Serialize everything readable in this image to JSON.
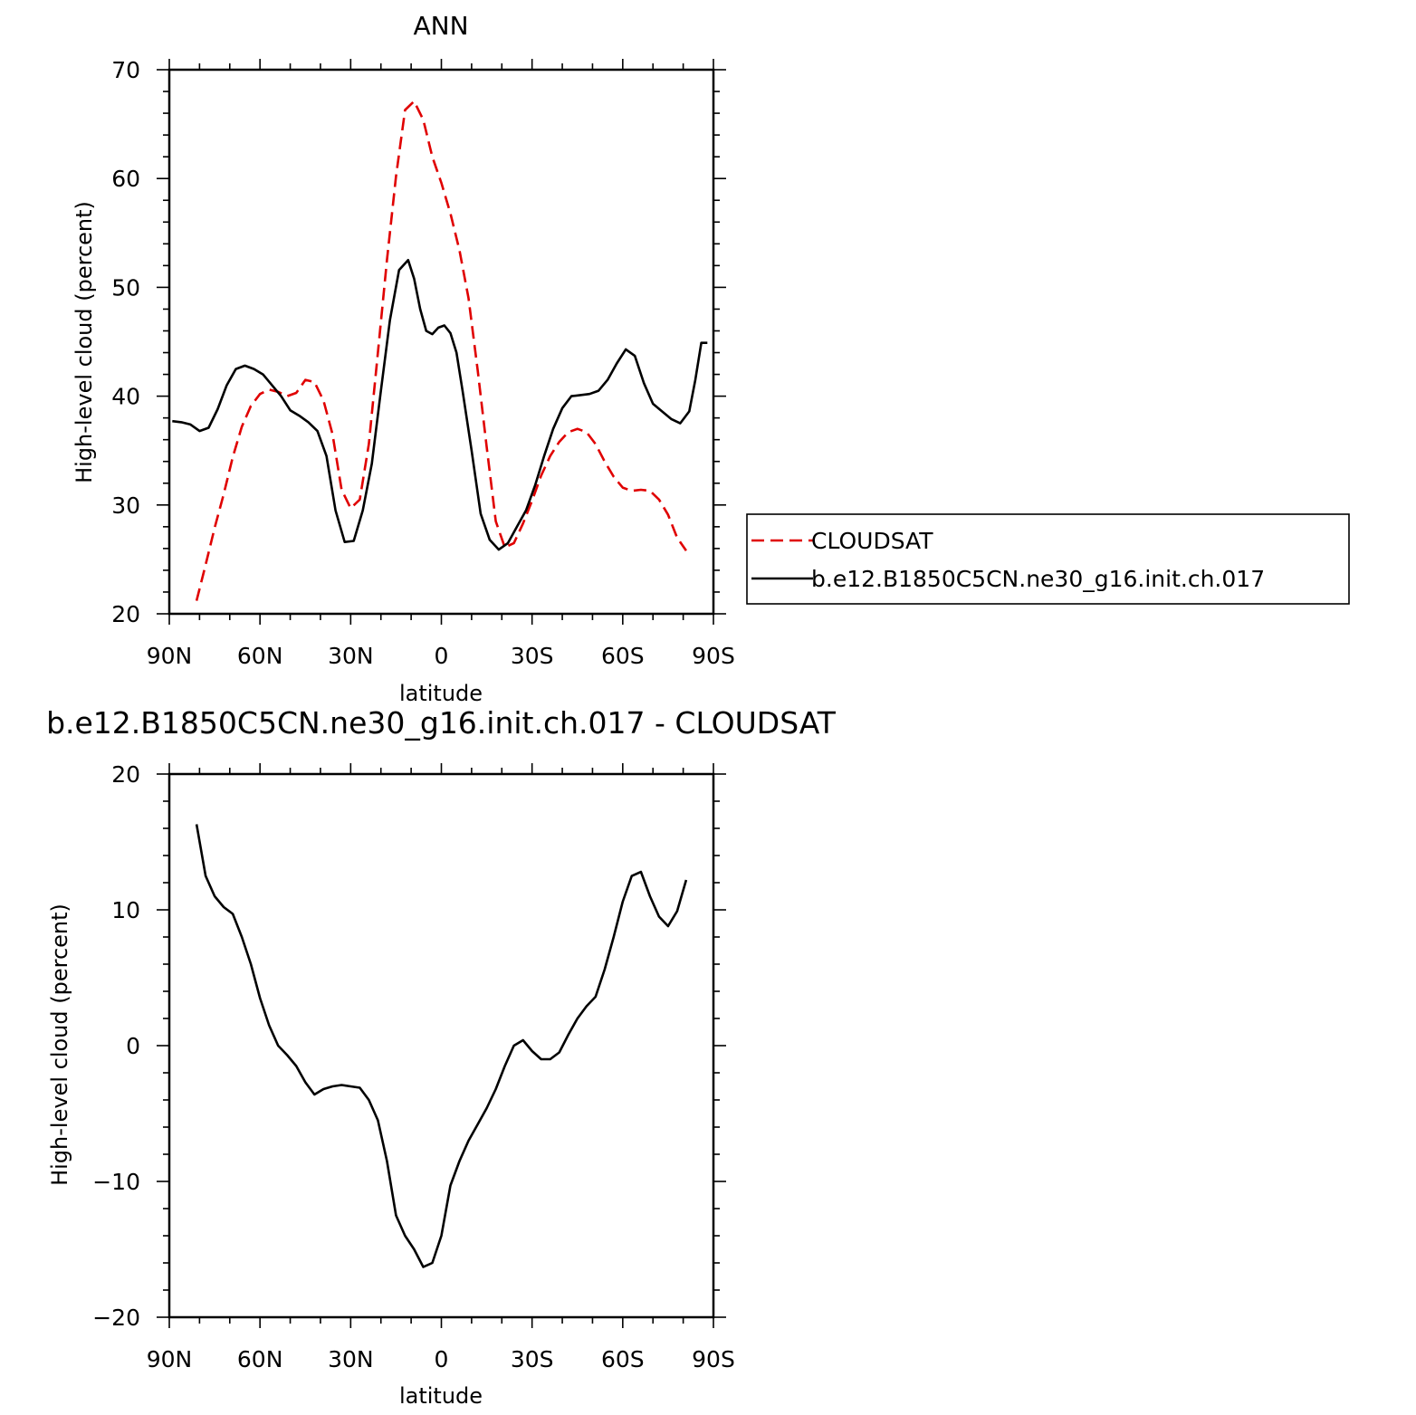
{
  "chart_data": [
    {
      "type": "line",
      "title": "ANN",
      "xlabel": "latitude",
      "ylabel": "High-level cloud (percent)",
      "xlim": [
        90,
        -90
      ],
      "ylim": [
        20,
        70
      ],
      "x_tick_values": [
        90,
        60,
        30,
        0,
        -30,
        -60,
        -90
      ],
      "x_tick_labels": [
        "90N",
        "60N",
        "30N",
        "0",
        "30S",
        "60S",
        "90S"
      ],
      "y_tick_values": [
        20,
        30,
        40,
        50,
        60,
        70
      ],
      "y_tick_labels": [
        "20",
        "30",
        "40",
        "50",
        "60",
        "70"
      ],
      "legend": {
        "placement": "right",
        "entries": [
          "CLOUDSAT",
          "b.e12.B1850C5CN.ne30_g16.init.ch.017"
        ]
      },
      "series": [
        {
          "name": "CLOUDSAT",
          "color": "#e00000",
          "dash": "dashed",
          "x": [
            81,
            78,
            75,
            72,
            69,
            66,
            63,
            60,
            57,
            54,
            51,
            48,
            45,
            42,
            39,
            36,
            33,
            30,
            27,
            24,
            21,
            18,
            15,
            12,
            9,
            6,
            3,
            0,
            -3,
            -6,
            -9,
            -12,
            -15,
            -18,
            -21,
            -24,
            -27,
            -30,
            -33,
            -36,
            -39,
            -42,
            -45,
            -48,
            -51,
            -54,
            -57,
            -60,
            -63,
            -66,
            -69,
            -72,
            -75,
            -78,
            -81
          ],
          "y": [
            21.2,
            24.5,
            27.9,
            31.0,
            34.4,
            37.2,
            39.1,
            40.2,
            40.6,
            40.4,
            40.0,
            40.3,
            41.5,
            41.3,
            39.6,
            36.5,
            31.4,
            29.7,
            30.5,
            35.6,
            44.0,
            52.5,
            60.2,
            66.3,
            67.1,
            65.4,
            62.0,
            59.6,
            56.8,
            53.4,
            49.0,
            42.4,
            35.3,
            28.5,
            26.1,
            26.5,
            28.3,
            30.4,
            32.7,
            34.5,
            35.8,
            36.7,
            37.0,
            36.7,
            35.6,
            34.0,
            32.6,
            31.6,
            31.3,
            31.4,
            31.3,
            30.5,
            29.1,
            27.0,
            25.8
          ]
        },
        {
          "name": "b.e12.B1850C5CN.ne30_g16.init.ch.017",
          "color": "#000000",
          "dash": "solid",
          "x": [
            89,
            86,
            83,
            80,
            77,
            74,
            71,
            68,
            65,
            62,
            59,
            56,
            53,
            50,
            47,
            44,
            41,
            38,
            35,
            32,
            29,
            26,
            23,
            20,
            17,
            14,
            11,
            9,
            7,
            5,
            3,
            1,
            -1,
            -3,
            -5,
            -7,
            -10,
            -13,
            -16,
            -19,
            -22,
            -25,
            -28,
            -31,
            -34,
            -37,
            -40,
            -43,
            -46,
            -49,
            -52,
            -55,
            -58,
            -61,
            -64,
            -67,
            -70,
            -73,
            -76,
            -79,
            -82,
            -84,
            -86,
            -88
          ],
          "y": [
            37.7,
            37.6,
            37.4,
            36.8,
            37.1,
            38.8,
            41.0,
            42.5,
            42.8,
            42.5,
            42.0,
            41.0,
            40.0,
            38.7,
            38.2,
            37.6,
            36.8,
            34.5,
            29.5,
            26.6,
            26.7,
            29.5,
            33.8,
            40.5,
            47.0,
            51.6,
            52.5,
            50.8,
            48.0,
            46.0,
            45.7,
            46.3,
            46.5,
            45.8,
            44.0,
            40.5,
            35.0,
            29.2,
            26.8,
            25.9,
            26.5,
            28.0,
            29.5,
            31.8,
            34.5,
            37.0,
            38.9,
            40.0,
            40.1,
            40.2,
            40.5,
            41.5,
            43.0,
            44.3,
            43.7,
            41.2,
            39.3,
            38.6,
            37.9,
            37.5,
            38.6,
            41.5,
            44.9,
            44.9
          ]
        }
      ]
    },
    {
      "type": "line",
      "title": "b.e12.B1850C5CN.ne30_g16.init.ch.017 - CLOUDSAT",
      "xlabel": "latitude",
      "ylabel": "High-level cloud (percent)",
      "xlim": [
        90,
        -90
      ],
      "ylim": [
        -20,
        20
      ],
      "x_tick_values": [
        90,
        60,
        30,
        0,
        -30,
        -60,
        -90
      ],
      "x_tick_labels": [
        "90N",
        "60N",
        "30N",
        "0",
        "30S",
        "60S",
        "90S"
      ],
      "y_tick_values": [
        -20,
        -10,
        0,
        10,
        20
      ],
      "y_tick_labels": [
        "−20",
        "−10",
        "0",
        "10",
        "20"
      ],
      "series": [
        {
          "color": "#000000",
          "dash": "solid",
          "x": [
            81,
            78,
            75,
            72,
            69,
            66,
            63,
            60,
            57,
            54,
            51,
            48,
            45,
            42,
            39,
            36,
            33,
            30,
            27,
            24,
            21,
            18,
            15,
            12,
            9,
            6,
            3,
            0,
            -3,
            -6,
            -9,
            -12,
            -15,
            -18,
            -21,
            -24,
            -27,
            -30,
            -33,
            -36,
            -39,
            -42,
            -45,
            -48,
            -51,
            -54,
            -57,
            -60,
            -63,
            -66,
            -69,
            -72,
            -75,
            -78,
            -81
          ],
          "y": [
            16.3,
            12.5,
            11.0,
            10.2,
            9.7,
            8.0,
            6.0,
            3.5,
            1.5,
            0.0,
            -0.7,
            -1.5,
            -2.7,
            -3.6,
            -3.2,
            -3.0,
            -2.9,
            -3.0,
            -3.1,
            -4.0,
            -5.5,
            -8.5,
            -12.5,
            -14.0,
            -15.0,
            -16.3,
            -16.0,
            -14.0,
            -10.3,
            -8.5,
            -7.0,
            -5.8,
            -4.6,
            -3.2,
            -1.5,
            0.0,
            0.4,
            -0.4,
            -1.0,
            -1.0,
            -0.5,
            0.8,
            2.0,
            2.9,
            3.6,
            5.6,
            8.0,
            10.6,
            12.5,
            12.8,
            11.0,
            9.5,
            8.8,
            9.9,
            12.2
          ]
        }
      ]
    }
  ]
}
